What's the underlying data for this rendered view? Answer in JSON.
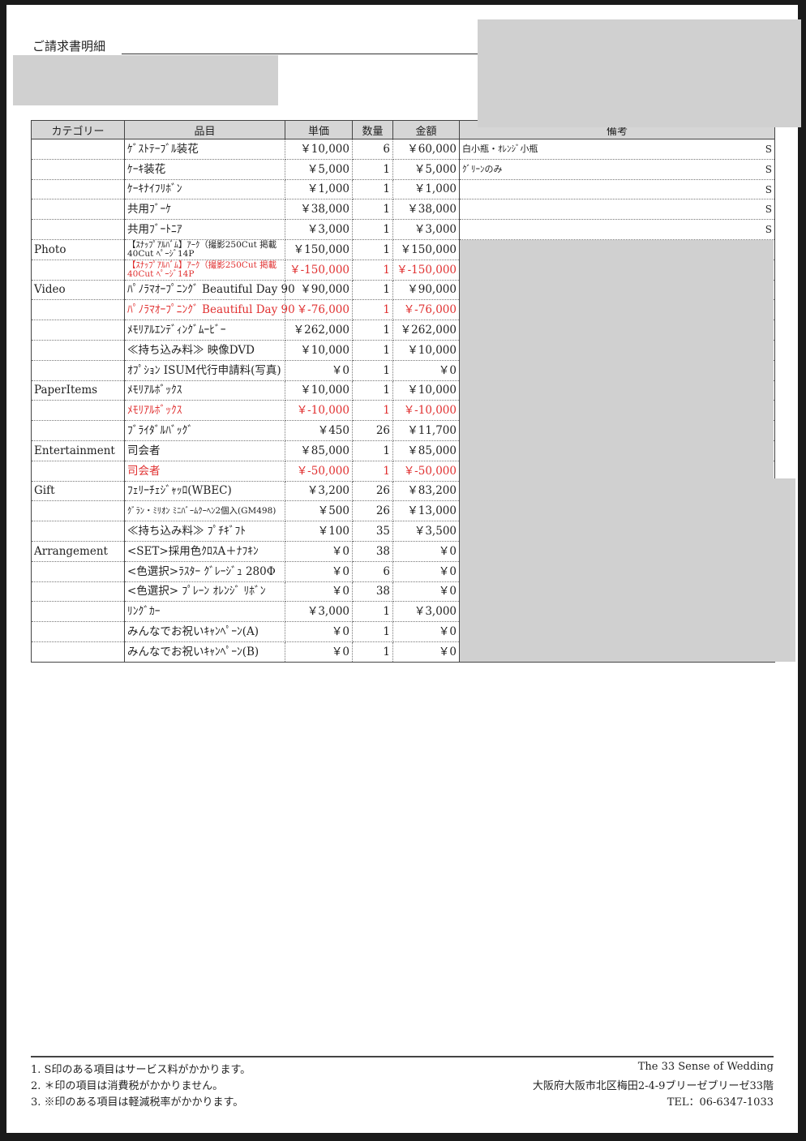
{
  "title": "ご請求書明細",
  "columns": [
    "カテゴリー",
    "品目",
    "単価",
    "数量",
    "金額",
    "備考"
  ],
  "rows": [
    {
      "category": "",
      "item": "ｹﾞｽﾄﾃｰﾌﾞﾙ装花",
      "price": "￥10,000",
      "qty": "6",
      "amount": "￥60,000",
      "notes": "白小瓶・ｵﾚﾝｼﾞ小瓶",
      "mark": "S"
    },
    {
      "category": "",
      "item": "ｹｰｷ装花",
      "price": "￥5,000",
      "qty": "1",
      "amount": "￥5,000",
      "notes": "ｸﾞﾘｰﾝのみ",
      "mark": "S"
    },
    {
      "category": "",
      "item": "ｹｰｷﾅｲﾌﾘﾎﾞﾝ",
      "price": "￥1,000",
      "qty": "1",
      "amount": "￥1,000",
      "notes": "",
      "mark": "S"
    },
    {
      "category": "",
      "item": "共用ﾌﾞｰｹ",
      "price": "￥38,000",
      "qty": "1",
      "amount": "￥38,000",
      "notes": "",
      "mark": "S"
    },
    {
      "category": "",
      "item": "共用ﾌﾞｰﾄﾆｱ",
      "price": "￥3,000",
      "qty": "1",
      "amount": "￥3,000",
      "notes": "",
      "mark": "S"
    },
    {
      "category": "Photo",
      "item": "【ｽﾅｯﾌﾟｱﾙﾊﾞﾑ】ｱｰｸ（撮影250Cut 掲載40Cut ﾍﾟｰｼﾞ14P",
      "price": "￥150,000",
      "qty": "1",
      "amount": "￥150,000",
      "small": true
    },
    {
      "category": "",
      "item": "【ｽﾅｯﾌﾟｱﾙﾊﾞﾑ】ｱｰｸ（撮影250Cut 掲載40Cut ﾍﾟｰｼﾞ14P",
      "price": "￥-150,000",
      "qty": "1",
      "amount": "￥-150,000",
      "red": true,
      "small": true
    },
    {
      "category": "Video",
      "item": "ﾊﾟﾉﾗﾏｵｰﾌﾟﾆﾝｸﾞ Beautiful Day 90",
      "price": "￥90,000",
      "qty": "1",
      "amount": "￥90,000"
    },
    {
      "category": "",
      "item": "ﾊﾟﾉﾗﾏｵｰﾌﾟﾆﾝｸﾞ Beautiful Day 90",
      "price": "￥-76,000",
      "qty": "1",
      "amount": "￥-76,000",
      "red": true
    },
    {
      "category": "",
      "item": "ﾒﾓﾘｱﾙｴﾝﾃﾞｨﾝｸﾞﾑｰﾋﾞｰ",
      "price": "￥262,000",
      "qty": "1",
      "amount": "￥262,000"
    },
    {
      "category": "",
      "item": "≪持ち込み料≫ 映像DVD",
      "price": "￥10,000",
      "qty": "1",
      "amount": "￥10,000"
    },
    {
      "category": "",
      "item": "ｵﾌﾟｼｮﾝ ISUM代行申請料(写真)",
      "price": "￥0",
      "qty": "1",
      "amount": "￥0"
    },
    {
      "category": "PaperItems",
      "item": "ﾒﾓﾘｱﾙﾎﾞｯｸｽ",
      "price": "￥10,000",
      "qty": "1",
      "amount": "￥10,000"
    },
    {
      "category": "",
      "item": "ﾒﾓﾘｱﾙﾎﾞｯｸｽ",
      "price": "￥-10,000",
      "qty": "1",
      "amount": "￥-10,000",
      "red": true
    },
    {
      "category": "",
      "item": "ﾌﾞﾗｲﾀﾞﾙﾊﾞｯｸﾞ",
      "price": "￥450",
      "qty": "26",
      "amount": "￥11,700"
    },
    {
      "category": "Entertainment",
      "item": "司会者",
      "price": "￥85,000",
      "qty": "1",
      "amount": "￥85,000"
    },
    {
      "category": "",
      "item": "司会者",
      "price": "￥-50,000",
      "qty": "1",
      "amount": "￥-50,000",
      "red": true
    },
    {
      "category": "Gift",
      "item": "ﾌｪﾘｰﾁｪｼﾞｬｯﾛ(WBEC)",
      "price": "￥3,200",
      "qty": "26",
      "amount": "￥83,200"
    },
    {
      "category": "",
      "item": "ｸﾞﾗﾝ・ﾐﾘｵﾝ ﾐﾆﾊﾞｰﾑｸｰﾍﾝ2個入(GM498)",
      "price": "￥500",
      "qty": "26",
      "amount": "￥13,000",
      "small": true
    },
    {
      "category": "",
      "item": "≪持ち込み料≫ ﾌﾟﾁｷﾞﾌﾄ",
      "price": "￥100",
      "qty": "35",
      "amount": "￥3,500"
    },
    {
      "category": "Arrangement",
      "item": "<SET>採用色ｸﾛｽA＋ﾅﾌｷﾝ",
      "price": "￥0",
      "qty": "38",
      "amount": "￥0"
    },
    {
      "category": "",
      "item": "<色選択>ﾗｽﾀｰ ｸﾞﾚｰｼﾞｭ 280Φ",
      "price": "￥0",
      "qty": "6",
      "amount": "￥0"
    },
    {
      "category": "",
      "item": "<色選択> ﾌﾟﾚｰﾝ ｵﾚﾝｼﾞ ﾘﾎﾞﾝ",
      "price": "￥0",
      "qty": "38",
      "amount": "￥0"
    },
    {
      "category": "",
      "item": "ﾘﾝｸﾞｶｰ",
      "price": "￥3,000",
      "qty": "1",
      "amount": "￥3,000"
    },
    {
      "category": "",
      "item": "みんなでお祝いｷｬﾝﾍﾟｰﾝ(A)",
      "price": "￥0",
      "qty": "1",
      "amount": "￥0"
    },
    {
      "category": "",
      "item": "みんなでお祝いｷｬﾝﾍﾟｰﾝ(B)",
      "price": "￥0",
      "qty": "1",
      "amount": "￥0"
    }
  ],
  "footer": {
    "notes": [
      "1. S印のある項目はサービス料がかかります。",
      "2. ＊印の項目は消費税がかかりません。",
      "3. ※印のある項目は軽減税率がかかります。"
    ],
    "company": "The 33 Sense of Wedding",
    "address": "大阪府大阪市北区梅田2-4-9ブリーゼブリーゼ33階",
    "tel": "TEL：06-6347-1033"
  },
  "colors": {
    "negative": "#e03030",
    "header_bg": "#d6d6d6",
    "redaction": "#d0d0d0"
  }
}
